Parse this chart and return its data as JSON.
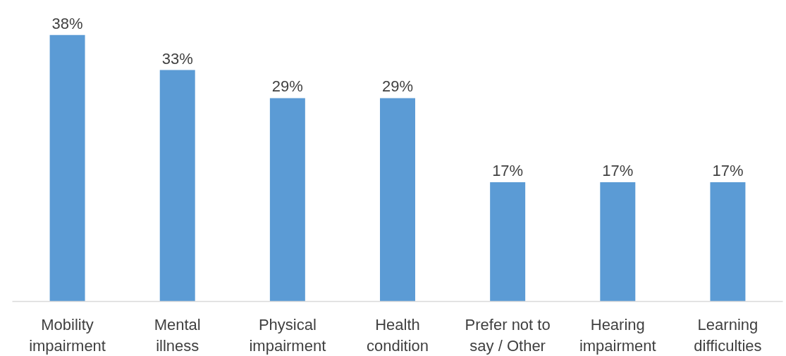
{
  "chart_data": {
    "type": "bar",
    "categories": [
      "Mobility\nimpairment",
      "Mental\nillness",
      "Physical\nimpairment",
      "Health\ncondition",
      "Prefer not to\nsay / Other",
      "Hearing\nimpairment",
      "Learning\ndifficulties"
    ],
    "values": [
      38,
      33,
      29,
      29,
      17,
      17,
      17
    ],
    "value_labels": [
      "38%",
      "33%",
      "29%",
      "29%",
      "17%",
      "17%",
      "17%"
    ],
    "color": "#5b9bd5",
    "grid": false
  }
}
